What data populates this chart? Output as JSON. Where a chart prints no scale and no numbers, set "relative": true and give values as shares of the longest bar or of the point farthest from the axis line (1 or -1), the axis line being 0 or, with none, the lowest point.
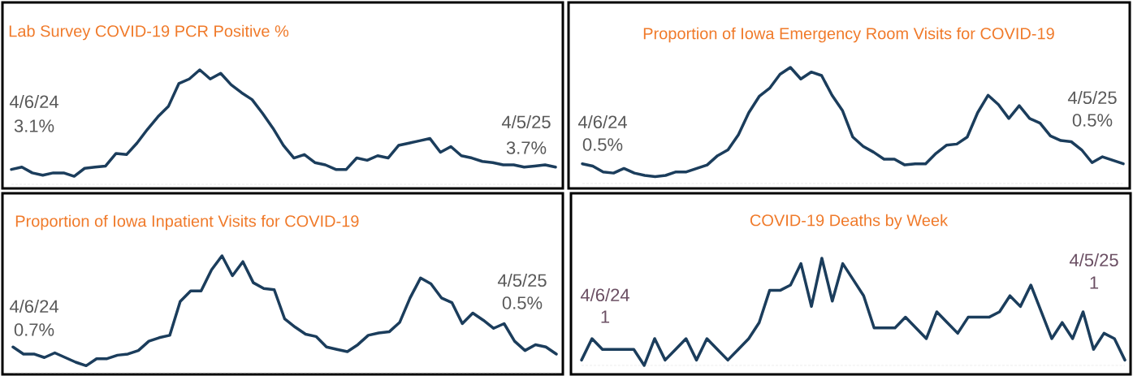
{
  "chart_data": [
    {
      "type": "line",
      "title": "Lab Survey COVID-19 PCR Positive %",
      "relative": true,
      "color": "#1b3d5c",
      "categories": [
        null,
        null,
        null,
        null,
        null,
        null,
        null,
        null,
        null,
        null,
        null,
        null,
        null,
        null,
        null,
        null,
        null,
        null,
        null,
        null,
        null,
        null,
        null,
        null,
        null,
        null,
        null,
        null,
        null,
        null,
        null,
        null,
        null,
        null,
        null,
        null,
        null,
        null,
        null,
        null,
        null,
        null,
        null,
        null,
        null,
        null,
        null,
        null,
        null,
        null,
        null,
        null,
        null
      ],
      "values": [
        0.13,
        0.15,
        0.1,
        0.08,
        0.1,
        0.1,
        0.07,
        0.14,
        0.15,
        0.16,
        0.27,
        0.26,
        0.36,
        0.48,
        0.59,
        0.68,
        0.88,
        0.92,
        1,
        0.92,
        0.97,
        0.87,
        0.8,
        0.74,
        0.62,
        0.49,
        0.34,
        0.23,
        0.26,
        0.19,
        0.17,
        0.13,
        0.13,
        0.23,
        0.21,
        0.25,
        0.23,
        0.34,
        0.36,
        0.38,
        0.4,
        0.28,
        0.33,
        0.25,
        0.23,
        0.2,
        0.19,
        0.17,
        0.17,
        0.15,
        0.16,
        0.17,
        0.15
      ],
      "annotations": [
        "4/6/24",
        "3.1%",
        "4/5/25",
        "3.7%"
      ]
    },
    {
      "type": "line",
      "title": "Proportion of Iowa Emergency Room  Visits for COVID-19",
      "relative": true,
      "color": "#1b3d5c",
      "categories": [
        null,
        null,
        null,
        null,
        null,
        null,
        null,
        null,
        null,
        null,
        null,
        null,
        null,
        null,
        null,
        null,
        null,
        null,
        null,
        null,
        null,
        null,
        null,
        null,
        null,
        null,
        null,
        null,
        null,
        null,
        null,
        null,
        null,
        null,
        null,
        null,
        null,
        null,
        null,
        null,
        null,
        null,
        null,
        null,
        null,
        null,
        null,
        null,
        null,
        null,
        null,
        null,
        null
      ],
      "values": [
        0.17,
        0.15,
        0.1,
        0.09,
        0.13,
        0.09,
        0.07,
        0.06,
        0.07,
        0.1,
        0.1,
        0.13,
        0.16,
        0.24,
        0.29,
        0.42,
        0.61,
        0.75,
        0.82,
        0.94,
        1,
        0.9,
        0.96,
        0.93,
        0.76,
        0.63,
        0.4,
        0.32,
        0.27,
        0.21,
        0.21,
        0.16,
        0.17,
        0.17,
        0.26,
        0.33,
        0.34,
        0.4,
        0.61,
        0.76,
        0.68,
        0.56,
        0.67,
        0.56,
        0.52,
        0.41,
        0.37,
        0.36,
        0.29,
        0.18,
        0.23,
        0.2,
        0.17
      ],
      "annotations": [
        "4/6/24",
        "0.5%",
        "4/5/25",
        "0.5%"
      ]
    },
    {
      "type": "line",
      "title": "Proportion of Iowa Inpatient  Visits for COVID-19",
      "relative": true,
      "color": "#1b3d5c",
      "categories": [
        null,
        null,
        null,
        null,
        null,
        null,
        null,
        null,
        null,
        null,
        null,
        null,
        null,
        null,
        null,
        null,
        null,
        null,
        null,
        null,
        null,
        null,
        null,
        null,
        null,
        null,
        null,
        null,
        null,
        null,
        null,
        null,
        null,
        null,
        null,
        null,
        null,
        null,
        null,
        null,
        null,
        null,
        null,
        null,
        null,
        null,
        null,
        null,
        null,
        null,
        null,
        null,
        null
      ],
      "values": [
        0.22,
        0.16,
        0.16,
        0.13,
        0.17,
        0.13,
        0.09,
        0.06,
        0.12,
        0.12,
        0.15,
        0.16,
        0.19,
        0.27,
        0.3,
        0.32,
        0.61,
        0.7,
        0.7,
        0.88,
        1,
        0.83,
        0.95,
        0.77,
        0.72,
        0.71,
        0.46,
        0.39,
        0.33,
        0.31,
        0.22,
        0.2,
        0.18,
        0.24,
        0.32,
        0.34,
        0.35,
        0.43,
        0.64,
        0.81,
        0.76,
        0.64,
        0.6,
        0.42,
        0.51,
        0.45,
        0.38,
        0.42,
        0.27,
        0.19,
        0.24,
        0.22,
        0.16
      ],
      "annotations": [
        "4/6/24",
        "0.7%",
        "4/5/25",
        "0.5%"
      ]
    },
    {
      "type": "line",
      "title": "COVID-19 Deaths by Week",
      "relative": true,
      "color": "#1b3d5c",
      "categories": [
        null,
        null,
        null,
        null,
        null,
        null,
        null,
        null,
        null,
        null,
        null,
        null,
        null,
        null,
        null,
        null,
        null,
        null,
        null,
        null,
        null,
        null,
        null,
        null,
        null,
        null,
        null,
        null,
        null,
        null,
        null,
        null,
        null,
        null,
        null,
        null,
        null,
        null,
        null,
        null,
        null,
        null,
        null,
        null,
        null,
        null,
        null,
        null,
        null,
        null,
        null,
        null,
        null
      ],
      "values": [
        0.05,
        0.25,
        0.15,
        0.15,
        0.15,
        0.15,
        0,
        0.25,
        0.05,
        0.15,
        0.25,
        0.05,
        0.25,
        0.15,
        0.05,
        0.15,
        0.25,
        0.4,
        0.7,
        0.7,
        0.75,
        0.95,
        0.55,
        1,
        0.6,
        0.95,
        0.8,
        0.65,
        0.35,
        0.35,
        0.35,
        0.45,
        0.35,
        0.25,
        0.5,
        0.4,
        0.3,
        0.45,
        0.45,
        0.45,
        0.5,
        0.65,
        0.55,
        0.75,
        0.5,
        0.25,
        0.4,
        0.25,
        0.5,
        0.15,
        0.3,
        0.25,
        0.05
      ],
      "annotations": [
        "4/6/24",
        "1",
        "4/5/25",
        "1"
      ]
    }
  ]
}
